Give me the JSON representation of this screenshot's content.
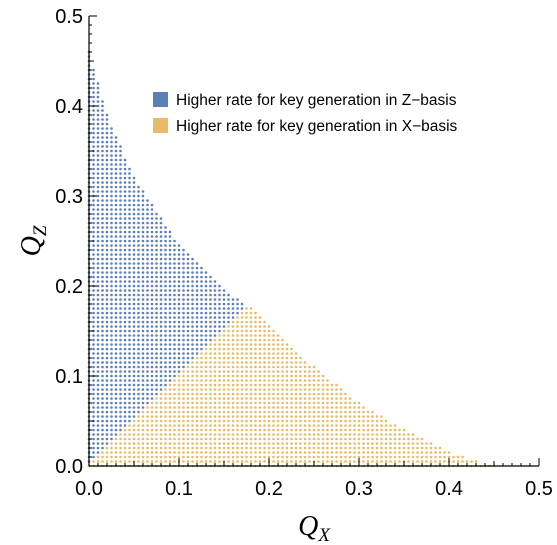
{
  "chart_data": {
    "type": "scatter",
    "title": "",
    "xlabel": {
      "main": "Q",
      "sub": "X"
    },
    "ylabel": {
      "main": "Q",
      "sub": "Z"
    },
    "xlim": [
      0,
      0.5
    ],
    "ylim": [
      0,
      0.5
    ],
    "x_ticks": [
      "0.0",
      "0.1",
      "0.2",
      "0.3",
      "0.4",
      "0.5"
    ],
    "y_ticks": [
      "0.0",
      "0.1",
      "0.2",
      "0.3",
      "0.4",
      "0.5"
    ],
    "grid": false,
    "legend_position": "top-right",
    "grid_step": 0.005,
    "series": [
      {
        "name": "Higher rate for key generation in Z−basis",
        "color": "#5b7fb7",
        "region": "Q_Z > Q_X within feasible region"
      },
      {
        "name": "Higher rate for key generation in X−basis",
        "color": "#e8bb66",
        "region": "Q_X > Q_Z within feasible region"
      }
    ],
    "boundary": [
      {
        "x": 0.0,
        "y": 0.46
      },
      {
        "x": 0.02,
        "y": 0.39
      },
      {
        "x": 0.05,
        "y": 0.32
      },
      {
        "x": 0.1,
        "y": 0.245
      },
      {
        "x": 0.15,
        "y": 0.195
      },
      {
        "x": 0.178,
        "y": 0.178
      },
      {
        "x": 0.2,
        "y": 0.155
      },
      {
        "x": 0.25,
        "y": 0.11
      },
      {
        "x": 0.3,
        "y": 0.07
      },
      {
        "x": 0.35,
        "y": 0.04
      },
      {
        "x": 0.4,
        "y": 0.015
      },
      {
        "x": 0.45,
        "y": 0.0
      }
    ]
  }
}
